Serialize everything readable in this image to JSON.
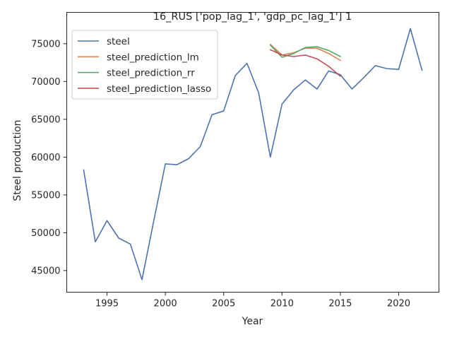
{
  "chart_data": {
    "type": "line",
    "title": "16_RUS ['pop_lag_1', 'gdp_pc_lag_1'] 1",
    "xlabel": "Year",
    "ylabel": "Steel production",
    "xlim": [
      1991.55,
      2023.45
    ],
    "ylim": [
      42140,
      79140
    ],
    "xticks": [
      1995,
      2000,
      2005,
      2010,
      2015,
      2020
    ],
    "yticks": [
      45000,
      50000,
      55000,
      60000,
      65000,
      70000,
      75000
    ],
    "xtick_labels": [
      "1995",
      "2000",
      "2005",
      "2010",
      "2015",
      "2020"
    ],
    "ytick_labels": [
      "45000",
      "50000",
      "55000",
      "60000",
      "65000",
      "70000",
      "75000"
    ],
    "grid": false,
    "legend_position": "top-left",
    "series": [
      {
        "name": "steel",
        "color": "#4c72b0",
        "x": [
          1993,
          1994,
          1995,
          1996,
          1997,
          1998,
          1999,
          2000,
          2001,
          2002,
          2003,
          2004,
          2005,
          2006,
          2007,
          2008,
          2009,
          2010,
          2011,
          2012,
          2013,
          2014,
          2015,
          2016,
          2017,
          2018,
          2019,
          2020,
          2021,
          2022
        ],
        "y": [
          58300,
          48800,
          51600,
          49300,
          48500,
          43800,
          51500,
          59100,
          59000,
          59800,
          61400,
          65600,
          66100,
          70800,
          72400,
          68500,
          60000,
          67000,
          68900,
          70200,
          69000,
          71400,
          70900,
          69000,
          70500,
          72100,
          71700,
          71600,
          77000,
          71500
        ]
      },
      {
        "name": "steel_prediction_lm",
        "color": "#dd8452",
        "x": [
          2009,
          2010,
          2011,
          2012,
          2013,
          2014,
          2015
        ],
        "y": [
          74900,
          73500,
          73800,
          74400,
          74400,
          73700,
          72800
        ]
      },
      {
        "name": "steel_prediction_rr",
        "color": "#55a868",
        "x": [
          2009,
          2010,
          2011,
          2012,
          2013,
          2014,
          2015
        ],
        "y": [
          74800,
          73200,
          73700,
          74500,
          74600,
          74100,
          73300
        ]
      },
      {
        "name": "steel_prediction_lasso",
        "color": "#c44e52",
        "x": [
          2009,
          2010,
          2011,
          2012,
          2013,
          2014,
          2015
        ],
        "y": [
          74200,
          73500,
          73300,
          73500,
          73000,
          72000,
          70700
        ]
      }
    ]
  }
}
